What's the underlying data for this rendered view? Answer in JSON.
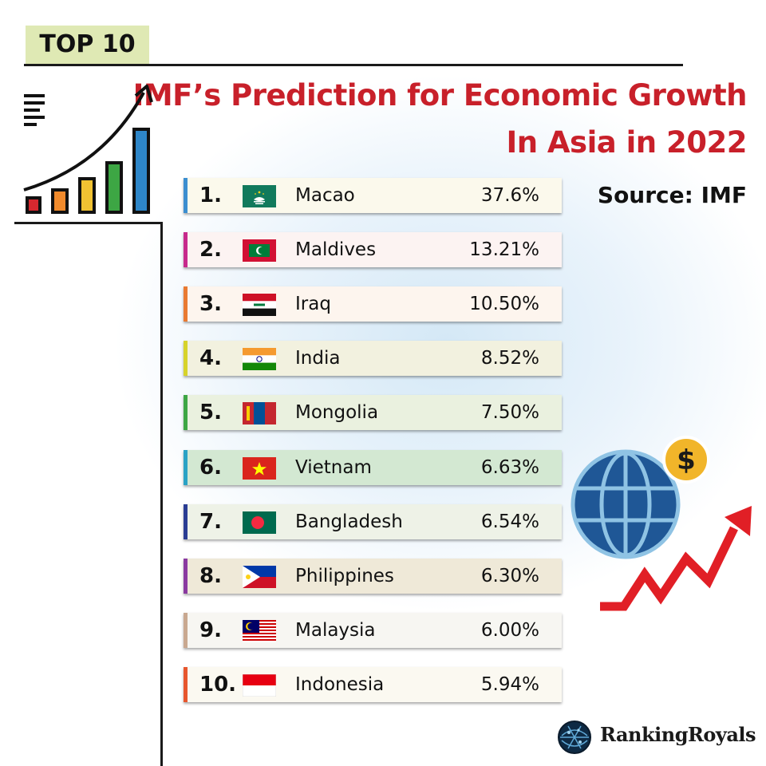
{
  "header": {
    "badge": "TOP 10",
    "title_line1": "IMF’s Prediction for Economic Growth",
    "title_line2": "In Asia in 2022",
    "source": "Source: IMF"
  },
  "brand": {
    "name": "RankingRoyals"
  },
  "icons": {
    "left": "growth-bar-chart-icon",
    "right": "globe-dollar-icon",
    "logo": "globe-logo-icon"
  },
  "chart_data": {
    "type": "table",
    "columns": [
      "rank",
      "country",
      "growth"
    ],
    "rows": [
      {
        "rank": "1.",
        "country": "Macao",
        "growth": "37.6%",
        "value": 37.6,
        "flag": "macao-flag",
        "stripe": "#3b8ed0",
        "bg": "#fbf9ec"
      },
      {
        "rank": "2.",
        "country": "Maldives",
        "growth": "13.21%",
        "value": 13.21,
        "flag": "maldives-flag",
        "stripe": "#c72a8c",
        "bg": "#fcf3f2"
      },
      {
        "rank": "3.",
        "country": "Iraq",
        "growth": "10.50%",
        "value": 10.5,
        "flag": "iraq-flag",
        "stripe": "#e97a32",
        "bg": "#fdf5ee"
      },
      {
        "rank": "4.",
        "country": "India",
        "growth": "8.52%",
        "value": 8.52,
        "flag": "india-flag",
        "stripe": "#d7d32a",
        "bg": "#f2f1df"
      },
      {
        "rank": "5.",
        "country": "Mongolia",
        "growth": "7.50%",
        "value": 7.5,
        "flag": "mongolia-flag",
        "stripe": "#3da644",
        "bg": "#eaf1df"
      },
      {
        "rank": "6.",
        "country": "Vietnam",
        "growth": "6.63%",
        "value": 6.63,
        "flag": "vietnam-flag",
        "stripe": "#2aa2c5",
        "bg": "#d3e8d2"
      },
      {
        "rank": "7.",
        "country": "Bangladesh",
        "growth": "6.54%",
        "value": 6.54,
        "flag": "bangladesh-flag",
        "stripe": "#2a3c93",
        "bg": "#eef2e7"
      },
      {
        "rank": "8.",
        "country": "Philippines",
        "growth": "6.30%",
        "value": 6.3,
        "flag": "philippines-flag",
        "stripe": "#8a3aa0",
        "bg": "#efe9d8"
      },
      {
        "rank": "9.",
        "country": "Malaysia",
        "growth": "6.00%",
        "value": 6.0,
        "flag": "malaysia-flag",
        "stripe": "#c9a890",
        "bg": "#f7f6f2"
      },
      {
        "rank": "10.",
        "country": "Indonesia",
        "growth": "5.94%",
        "value": 5.94,
        "flag": "indonesia-flag",
        "stripe": "#e7562e",
        "bg": "#fbf9f1"
      }
    ]
  }
}
